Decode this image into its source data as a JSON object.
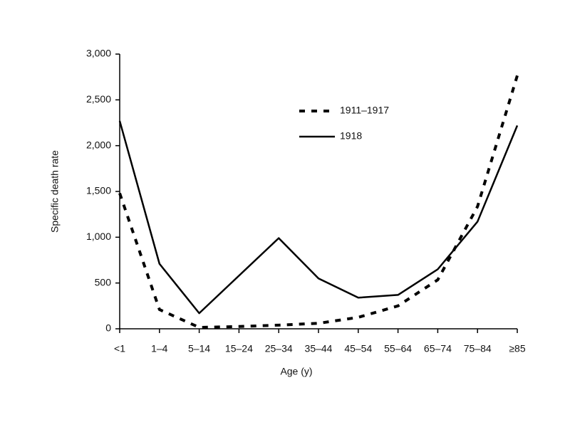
{
  "chart_data": {
    "type": "line",
    "x_label": "Age (y)",
    "y_label": "Specific death rate",
    "categories": [
      "<1",
      "1–4",
      "5–14",
      "15–24",
      "25–34",
      "35–44",
      "45–54",
      "55–64",
      "65–74",
      "75–84",
      "≥85"
    ],
    "series": [
      {
        "name": "1911–1917",
        "color": "#000000",
        "dashed": true,
        "values": [
          1480,
          210,
          15,
          25,
          40,
          60,
          125,
          250,
          535,
          1335,
          2765
        ]
      },
      {
        "name": "1918",
        "color": "#000000",
        "dashed": false,
        "values": [
          2270,
          710,
          170,
          580,
          990,
          550,
          340,
          370,
          650,
          1170,
          2220
        ]
      }
    ],
    "ylim": [
      0,
      3000
    ],
    "yticks": [
      0,
      500,
      {
        "value": 1000,
        "label": "1,000"
      },
      {
        "value": 1500,
        "label": "1,500"
      },
      {
        "value": 2000,
        "label": "2,000"
      },
      {
        "value": 2500,
        "label": "2,500"
      },
      {
        "value": 3000,
        "label": "3,000"
      }
    ],
    "grid": false,
    "legend": "upper center"
  }
}
